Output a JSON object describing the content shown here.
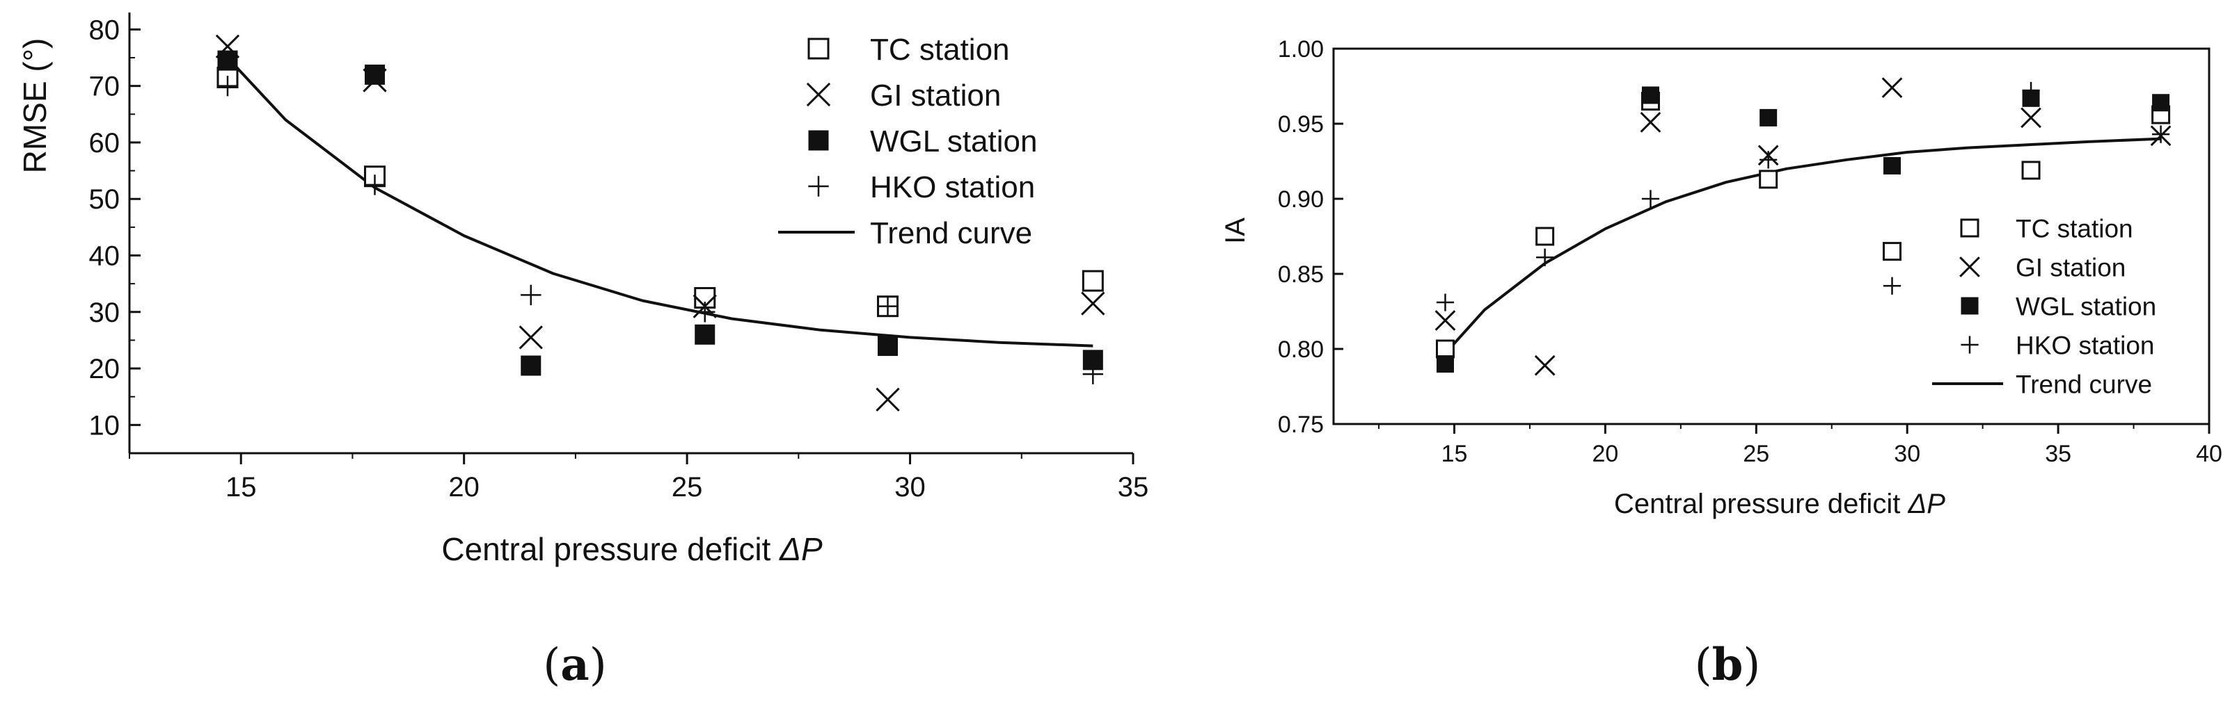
{
  "chart_data": [
    {
      "type": "scatter",
      "panel_label": "(a)",
      "panel_letter": "a",
      "title": "",
      "xlabel": "Central pressure deficit ΔP",
      "xlabel_main": "Central pressure deficit ",
      "xlabel_symbol": "ΔP",
      "ylabel": "RMSE (°)",
      "xlim": [
        12.5,
        35
      ],
      "ylim": [
        5,
        83
      ],
      "xticks": [
        15,
        20,
        25,
        30,
        35
      ],
      "yticks": [
        10,
        20,
        30,
        40,
        50,
        60,
        70,
        80
      ],
      "xtick_labels": [
        "15",
        "20",
        "25",
        "30",
        "35"
      ],
      "ytick_labels": [
        "10",
        "20",
        "30",
        "40",
        "50",
        "60",
        "70",
        "80"
      ],
      "legend_position": "top-right",
      "grid": false,
      "series": [
        {
          "name": "TC station",
          "marker": "open-square",
          "points": [
            [
              14.7,
              71.5
            ],
            [
              18.0,
              54.0
            ],
            [
              25.4,
              32.5
            ],
            [
              29.5,
              31.0
            ],
            [
              34.1,
              35.5
            ]
          ]
        },
        {
          "name": "GI station",
          "marker": "x",
          "points": [
            [
              14.7,
              77.0
            ],
            [
              18.0,
              71.0
            ],
            [
              21.5,
              25.5
            ],
            [
              25.4,
              31.0
            ],
            [
              29.5,
              14.5
            ],
            [
              34.1,
              31.5
            ]
          ]
        },
        {
          "name": "WGL station",
          "marker": "filled-square",
          "points": [
            [
              14.7,
              74.5
            ],
            [
              18.0,
              72.0
            ],
            [
              21.5,
              20.5
            ],
            [
              25.4,
              26.0
            ],
            [
              29.5,
              24.0
            ],
            [
              34.1,
              21.5
            ]
          ]
        },
        {
          "name": "HKO station",
          "marker": "plus",
          "points": [
            [
              14.7,
              70.0
            ],
            [
              18.0,
              52.5
            ],
            [
              21.5,
              33.0
            ],
            [
              25.4,
              30.0
            ],
            [
              29.5,
              31.0
            ],
            [
              34.1,
              19.0
            ]
          ]
        }
      ],
      "trend_curve": {
        "name": "Trend curve",
        "x": [
          14.7,
          16,
          18,
          20,
          22,
          24,
          26,
          28,
          30,
          32,
          34.1
        ],
        "y": [
          75.0,
          64.0,
          52.0,
          43.5,
          36.8,
          32.0,
          28.8,
          26.8,
          25.5,
          24.6,
          24.0
        ]
      }
    },
    {
      "type": "scatter",
      "panel_label": "(b)",
      "panel_letter": "b",
      "title": "",
      "xlabel": "Central pressure deficit ΔP",
      "xlabel_main": "Central pressure deficit ",
      "xlabel_symbol": "ΔP",
      "ylabel": "IA",
      "xlim": [
        11,
        40
      ],
      "ylim": [
        0.75,
        1.0
      ],
      "xticks": [
        15,
        20,
        25,
        30,
        35,
        40
      ],
      "yticks": [
        0.75,
        0.8,
        0.85,
        0.9,
        0.95,
        1.0
      ],
      "xtick_labels": [
        "15",
        "20",
        "25",
        "30",
        "35",
        "40"
      ],
      "ytick_labels": [
        "0.75",
        "0.80",
        "0.85",
        "0.90",
        "0.95",
        "1.00"
      ],
      "legend_position": "right",
      "grid": false,
      "series": [
        {
          "name": "TC station",
          "marker": "open-square",
          "points": [
            [
              14.7,
              0.8
            ],
            [
              18.0,
              0.875
            ],
            [
              21.5,
              0.965
            ],
            [
              25.4,
              0.913
            ],
            [
              29.5,
              0.865
            ],
            [
              34.1,
              0.919
            ],
            [
              38.4,
              0.956
            ]
          ]
        },
        {
          "name": "GI station",
          "marker": "x",
          "points": [
            [
              14.7,
              0.819
            ],
            [
              18.0,
              0.789
            ],
            [
              21.5,
              0.951
            ],
            [
              25.4,
              0.929
            ],
            [
              29.5,
              0.974
            ],
            [
              34.1,
              0.954
            ],
            [
              38.4,
              0.942
            ]
          ]
        },
        {
          "name": "WGL station",
          "marker": "filled-square",
          "points": [
            [
              14.7,
              0.79
            ],
            [
              21.5,
              0.969
            ],
            [
              25.4,
              0.954
            ],
            [
              29.5,
              0.922
            ],
            [
              34.1,
              0.967
            ],
            [
              38.4,
              0.964
            ]
          ]
        },
        {
          "name": "HKO station",
          "marker": "plus",
          "points": [
            [
              14.7,
              0.831
            ],
            [
              18.0,
              0.861
            ],
            [
              21.5,
              0.9
            ],
            [
              25.4,
              0.926
            ],
            [
              29.5,
              0.842
            ],
            [
              34.1,
              0.972
            ],
            [
              38.4,
              0.943
            ]
          ]
        }
      ],
      "trend_curve": {
        "name": "Trend curve",
        "x": [
          14.7,
          16,
          18,
          20,
          22,
          24,
          26,
          28,
          30,
          32,
          34,
          36,
          38.4
        ],
        "y": [
          0.797,
          0.826,
          0.857,
          0.88,
          0.898,
          0.911,
          0.92,
          0.926,
          0.931,
          0.934,
          0.936,
          0.938,
          0.94
        ]
      }
    }
  ]
}
